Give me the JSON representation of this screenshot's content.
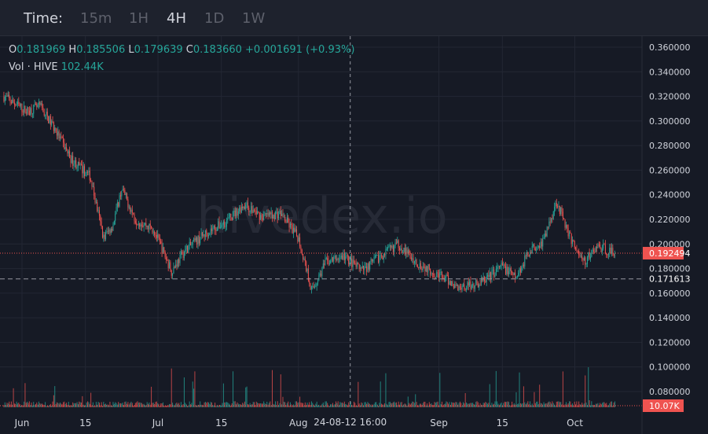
{
  "toolbar": {
    "time_label": "Time:",
    "intervals": [
      {
        "label": "15m",
        "active": false
      },
      {
        "label": "1H",
        "active": false
      },
      {
        "label": "4H",
        "active": true
      },
      {
        "label": "1D",
        "active": false
      },
      {
        "label": "1W",
        "active": false
      }
    ]
  },
  "legend": {
    "o_key": "O",
    "o_val": "0.181969",
    "h_key": "H",
    "h_val": "0.185506",
    "l_key": "L",
    "l_val": "0.179639",
    "c_key": "C",
    "c_val": "0.183660",
    "change": "+0.001691 (+0.93%)",
    "vol_key": "Vol · HIVE",
    "vol_val": "102.44K"
  },
  "watermark": "hivedex.io",
  "colors": {
    "up": "#26a69a",
    "down": "#ef5350",
    "bg": "#161a25",
    "grid": "#232734",
    "text": "#d1d4dc"
  },
  "chart_data": {
    "type": "candlestick",
    "ylim": [
      0.06,
      0.37
    ],
    "y_ticks": [
      "0.080000",
      "0.100000",
      "0.120000",
      "0.140000",
      "0.160000",
      "0.180000",
      "0.200000",
      "0.220000",
      "0.240000",
      "0.260000",
      "0.280000",
      "0.300000",
      "0.320000",
      "0.340000",
      "0.360000"
    ],
    "x_ticks": [
      "Jun",
      "15",
      "Jul",
      "15",
      "Aug",
      "Sep",
      "15",
      "Oct"
    ],
    "crosshair": {
      "x_label": "24-08-12 16:00",
      "y_label": "0.171613",
      "y_value": 0.171613
    },
    "last_price": {
      "label": "0.192494",
      "value": 0.192494
    },
    "last_volume": {
      "label": "10.07K"
    },
    "price_path": [
      [
        "2024-05-28",
        0.32
      ],
      [
        "2024-06-02",
        0.308
      ],
      [
        "2024-06-05",
        0.312
      ],
      [
        "2024-06-08",
        0.295
      ],
      [
        "2024-06-12",
        0.268
      ],
      [
        "2024-06-16",
        0.255
      ],
      [
        "2024-06-19",
        0.205
      ],
      [
        "2024-06-21",
        0.215
      ],
      [
        "2024-06-23",
        0.245
      ],
      [
        "2024-06-26",
        0.22
      ],
      [
        "2024-06-30",
        0.212
      ],
      [
        "2024-07-04",
        0.178
      ],
      [
        "2024-07-07",
        0.195
      ],
      [
        "2024-07-12",
        0.21
      ],
      [
        "2024-07-16",
        0.218
      ],
      [
        "2024-07-20",
        0.232
      ],
      [
        "2024-07-24",
        0.222
      ],
      [
        "2024-07-28",
        0.225
      ],
      [
        "2024-08-01",
        0.205
      ],
      [
        "2024-08-04",
        0.162
      ],
      [
        "2024-08-07",
        0.185
      ],
      [
        "2024-08-11",
        0.19
      ],
      [
        "2024-08-15",
        0.178
      ],
      [
        "2024-08-19",
        0.19
      ],
      [
        "2024-08-23",
        0.2
      ],
      [
        "2024-08-27",
        0.185
      ],
      [
        "2024-09-01",
        0.175
      ],
      [
        "2024-09-05",
        0.165
      ],
      [
        "2024-09-10",
        0.168
      ],
      [
        "2024-09-15",
        0.182
      ],
      [
        "2024-09-18",
        0.172
      ],
      [
        "2024-09-21",
        0.195
      ],
      [
        "2024-09-24",
        0.202
      ],
      [
        "2024-09-27",
        0.235
      ],
      [
        "2024-09-30",
        0.205
      ],
      [
        "2024-10-03",
        0.185
      ],
      [
        "2024-10-06",
        0.198
      ],
      [
        "2024-10-10",
        0.192
      ]
    ],
    "volume_max_k": 400
  }
}
